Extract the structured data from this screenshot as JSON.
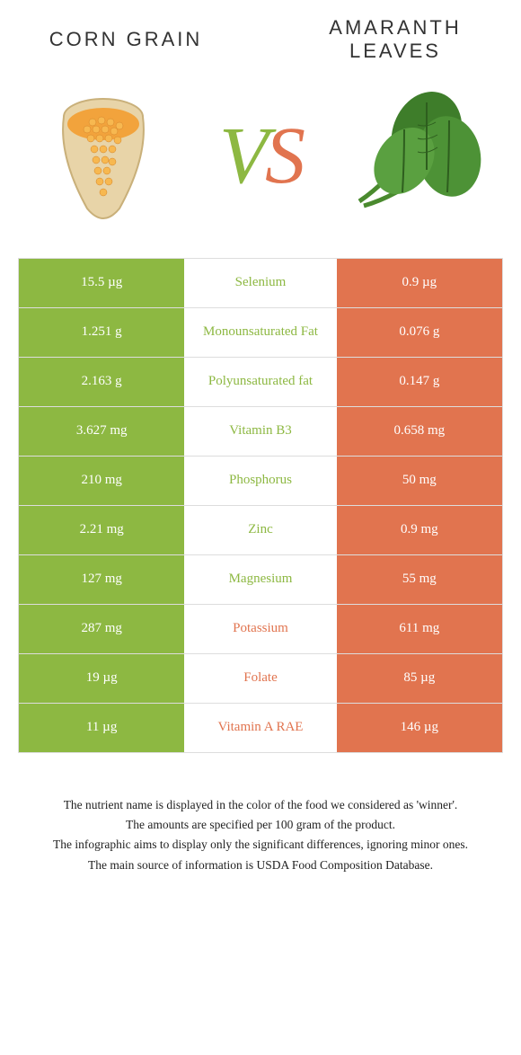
{
  "food_a": {
    "title": "CORN GRAIN"
  },
  "food_b": {
    "title": "AMARANTH LEAVES"
  },
  "vs_label": {
    "v": "V",
    "s": "S"
  },
  "colors": {
    "a": "#8db842",
    "b": "#e1744f",
    "a_text": "#8db842",
    "b_text": "#e1744f"
  },
  "rows": [
    {
      "left": "15.5 µg",
      "mid": "Selenium",
      "right": "0.9 µg",
      "winner": "a"
    },
    {
      "left": "1.251 g",
      "mid": "Monounsaturated Fat",
      "right": "0.076 g",
      "winner": "a"
    },
    {
      "left": "2.163 g",
      "mid": "Polyunsaturated fat",
      "right": "0.147 g",
      "winner": "a"
    },
    {
      "left": "3.627 mg",
      "mid": "Vitamin B3",
      "right": "0.658 mg",
      "winner": "a"
    },
    {
      "left": "210 mg",
      "mid": "Phosphorus",
      "right": "50 mg",
      "winner": "a"
    },
    {
      "left": "2.21 mg",
      "mid": "Zinc",
      "right": "0.9 mg",
      "winner": "a"
    },
    {
      "left": "127 mg",
      "mid": "Magnesium",
      "right": "55 mg",
      "winner": "a"
    },
    {
      "left": "287 mg",
      "mid": "Potassium",
      "right": "611 mg",
      "winner": "b"
    },
    {
      "left": "19 µg",
      "mid": "Folate",
      "right": "85 µg",
      "winner": "b"
    },
    {
      "left": "11 µg",
      "mid": "Vitamin A RAE",
      "right": "146 µg",
      "winner": "b"
    }
  ],
  "footer": {
    "l1": "The nutrient name is displayed in the color of the food we considered as 'winner'.",
    "l2": "The amounts are specified per 100 gram of the product.",
    "l3": "The infographic aims to display only the significant differences, ignoring minor ones.",
    "l4": "The main source of information is USDA Food Composition Database."
  }
}
